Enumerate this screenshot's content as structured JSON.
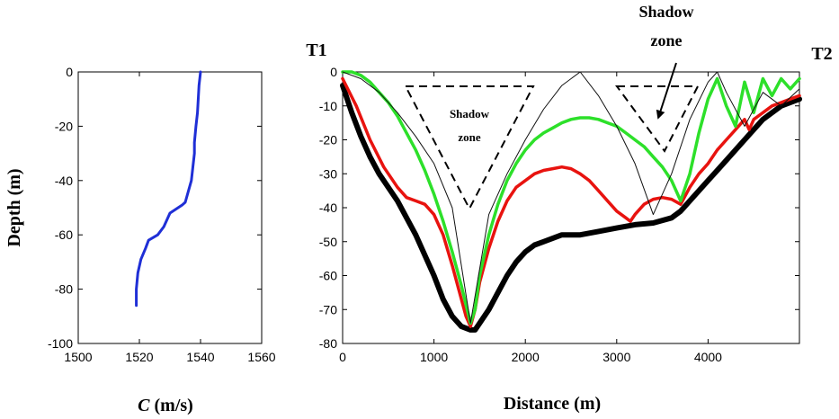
{
  "chart_data": [
    {
      "type": "line",
      "panel": "sound-speed-profile",
      "xlabel_symbol": "C",
      "xlabel_unit": " (m/s)",
      "ylabel": "Depth (m)",
      "xlim": [
        1500,
        1560
      ],
      "ylim": [
        -100,
        0
      ],
      "xticks": [
        1500,
        1520,
        1540,
        1560
      ],
      "yticks": [
        0,
        -20,
        -40,
        -60,
        -80,
        -100
      ],
      "series": [
        {
          "name": "sound-speed",
          "color": "#1f2fd6",
          "x": [
            1540,
            1539.5,
            1539,
            1538.5,
            1538,
            1538,
            1537.5,
            1537,
            1536,
            1535,
            1534,
            1530,
            1528,
            1526,
            1523,
            1522,
            1520.5,
            1519.5,
            1519,
            1519
          ],
          "y": [
            0,
            -5,
            -15,
            -20,
            -26,
            -30,
            -35,
            -40,
            -44,
            -48,
            -49,
            -52,
            -57,
            -60,
            -62,
            -65,
            -69,
            -74,
            -80,
            -86
          ]
        }
      ]
    },
    {
      "type": "line",
      "panel": "ray-trace",
      "xlabel": "Distance (m)",
      "xlim": [
        0,
        5000
      ],
      "ylim": [
        -80,
        0
      ],
      "xticks": [
        0,
        1000,
        2000,
        3000,
        4000
      ],
      "yticks": [
        0,
        -10,
        -20,
        -30,
        -40,
        -50,
        -60,
        -70,
        -80
      ],
      "annotations": {
        "t1": "T1",
        "t2": "T2",
        "shadow_left": [
          "Shadow",
          "zone"
        ],
        "shadow_right": [
          "Shadow",
          "zone"
        ]
      },
      "series": [
        {
          "name": "bathymetry",
          "color": "#000000",
          "width": 6,
          "x": [
            0,
            100,
            200,
            300,
            400,
            600,
            800,
            1000,
            1100,
            1200,
            1300,
            1400,
            1450,
            1500,
            1600,
            1700,
            1800,
            1900,
            2000,
            2100,
            2200,
            2400,
            2600,
            2800,
            3000,
            3200,
            3400,
            3600,
            3700,
            3800,
            3900,
            4000,
            4100,
            4200,
            4400,
            4600,
            4800,
            5000
          ],
          "y": [
            -4,
            -12,
            -19,
            -25,
            -30,
            -38,
            -48,
            -60,
            -67,
            -72,
            -75,
            -76,
            -76,
            -74,
            -70,
            -65,
            -60,
            -56,
            -53,
            -51,
            -50,
            -48,
            -48,
            -47,
            -46,
            -45,
            -44.5,
            -43,
            -41,
            -38,
            -35,
            -32,
            -29,
            -26,
            -20,
            -14,
            -10,
            -8
          ]
        },
        {
          "name": "ray-red",
          "color": "#e8130f",
          "width": 3.5,
          "x": [
            0,
            150,
            300,
            450,
            600,
            700,
            800,
            900,
            1000,
            1100,
            1200,
            1300,
            1350,
            1400,
            1450,
            1500,
            1600,
            1700,
            1800,
            1900,
            2000,
            2100,
            2200,
            2300,
            2400,
            2500,
            2600,
            2700,
            2800,
            2900,
            3000,
            3100,
            3150,
            3200,
            3300,
            3400,
            3500,
            3600,
            3700,
            3800,
            3900,
            4000,
            4100,
            4200,
            4300,
            4400,
            4450,
            4500,
            4600,
            4700,
            4800,
            4900,
            5000
          ],
          "y": [
            -2,
            -10,
            -20,
            -28,
            -34,
            -37,
            -38,
            -39,
            -42,
            -48,
            -57,
            -67,
            -72,
            -75,
            -70,
            -62,
            -52,
            -44,
            -38,
            -34,
            -32,
            -30,
            -29,
            -28.5,
            -28,
            -28.5,
            -30,
            -32,
            -35,
            -38,
            -41,
            -43,
            -44,
            -42,
            -39,
            -37.5,
            -37,
            -37.5,
            -39,
            -34,
            -30,
            -27,
            -23,
            -20,
            -17,
            -14,
            -17,
            -14,
            -12,
            -10,
            -9,
            -8,
            -7
          ]
        },
        {
          "name": "ray-green",
          "color": "#2de02a",
          "width": 3.5,
          "x": [
            0,
            100,
            200,
            300,
            400,
            500,
            600,
            700,
            800,
            900,
            1000,
            1100,
            1200,
            1300,
            1400,
            1450,
            1500,
            1600,
            1700,
            1800,
            1900,
            2000,
            2100,
            2200,
            2300,
            2400,
            2500,
            2600,
            2700,
            2800,
            2900,
            3000,
            3100,
            3200,
            3300,
            3400,
            3500,
            3600,
            3700,
            3800,
            3900,
            4000,
            4100,
            4200,
            4300,
            4400,
            4500,
            4600,
            4700,
            4800,
            4900,
            5000
          ],
          "y": [
            0,
            0,
            -1,
            -3,
            -6,
            -9,
            -13,
            -18,
            -23,
            -29,
            -36,
            -44,
            -53,
            -63,
            -74,
            -70,
            -60,
            -48,
            -39,
            -32,
            -27,
            -23,
            -20,
            -18,
            -16.5,
            -15,
            -14,
            -13.5,
            -13.5,
            -14,
            -15,
            -16,
            -18,
            -20,
            -22,
            -25,
            -28,
            -32,
            -38,
            -30,
            -18,
            -8,
            -2,
            -10,
            -16,
            -3,
            -12,
            -2,
            -7,
            -2,
            -5,
            -2
          ]
        },
        {
          "name": "ray-thin",
          "color": "#111111",
          "width": 1,
          "x": [
            0,
            200,
            400,
            600,
            800,
            1000,
            1200,
            1400,
            1600,
            1800,
            2000,
            2200,
            2400,
            2600,
            2800,
            3000,
            3200,
            3400,
            3600,
            3800,
            4000,
            4100,
            4200,
            4400,
            4600,
            4800,
            5000
          ],
          "y": [
            0,
            -2,
            -6,
            -12,
            -19,
            -27,
            -40,
            -74,
            -42,
            -30,
            -20,
            -11,
            -4,
            0,
            -7,
            -16,
            -27,
            -42,
            -30,
            -14,
            -3,
            0,
            -6,
            -16,
            -6,
            -10,
            -5
          ]
        }
      ]
    }
  ]
}
